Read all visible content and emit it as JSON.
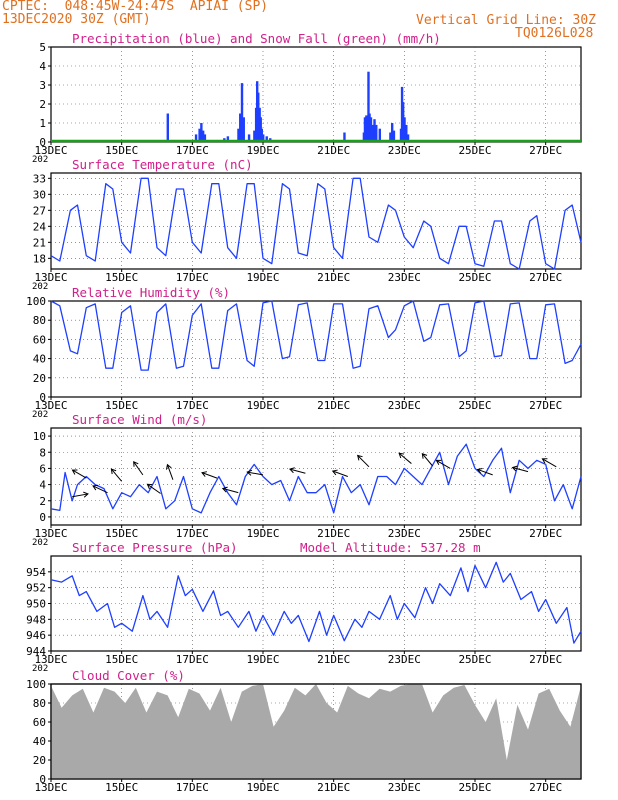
{
  "header": {
    "line1_left": "CPTEC:  048:45W-24:47S  APIAI (SP)",
    "line2_left": "13DEC2020 30Z (GMT)",
    "line1_right": "Vertical Grid Line: 30Z",
    "line2_right": "TQ0126L028"
  },
  "colors": {
    "header": "#e07020",
    "title": "#d0208a",
    "precip": "#1f3fff",
    "snow": "#18a018",
    "line": "#1f3fff",
    "cloud": "#a9a9a9",
    "arrow": "#000000"
  },
  "x_ticks": [
    "13DEC",
    "15DEC",
    "17DEC",
    "19DEC",
    "21DEC",
    "23DEC",
    "25DEC",
    "27DEC"
  ],
  "year_stub": "202",
  "chart_data": [
    {
      "id": "precip",
      "type": "bar",
      "title": "Precipitation (blue) and Snow Fall (green) (mm/h)",
      "ylim": [
        0,
        5
      ],
      "yticks": [
        "0",
        "1",
        "2",
        "3",
        "4",
        "5"
      ],
      "x_unit": "days since 13DEC00Z",
      "bars": [
        [
          0.9,
          0.1
        ],
        [
          1.1,
          0.1
        ],
        [
          3.3,
          1.5
        ],
        [
          4.1,
          0.4
        ],
        [
          4.2,
          0.7
        ],
        [
          4.25,
          1.0
        ],
        [
          4.3,
          0.6
        ],
        [
          4.35,
          0.4
        ],
        [
          4.9,
          0.2
        ],
        [
          5.0,
          0.3
        ],
        [
          5.3,
          0.7
        ],
        [
          5.35,
          1.5
        ],
        [
          5.4,
          3.1
        ],
        [
          5.45,
          1.3
        ],
        [
          5.6,
          0.4
        ],
        [
          5.75,
          0.6
        ],
        [
          5.8,
          1.8
        ],
        [
          5.83,
          3.2
        ],
        [
          5.86,
          2.6
        ],
        [
          5.9,
          1.8
        ],
        [
          5.93,
          1.3
        ],
        [
          5.96,
          0.7
        ],
        [
          6.0,
          0.4
        ],
        [
          6.1,
          0.3
        ],
        [
          6.2,
          0.2
        ],
        [
          8.3,
          0.5
        ],
        [
          8.85,
          0.5
        ],
        [
          8.88,
          1.3
        ],
        [
          8.92,
          1.4
        ],
        [
          8.95,
          1.2
        ],
        [
          8.98,
          3.7
        ],
        [
          9.01,
          1.5
        ],
        [
          9.05,
          1.3
        ],
        [
          9.1,
          0.9
        ],
        [
          9.15,
          1.2
        ],
        [
          9.2,
          0.9
        ],
        [
          9.3,
          0.7
        ],
        [
          9.6,
          0.5
        ],
        [
          9.65,
          1.0
        ],
        [
          9.7,
          0.6
        ],
        [
          9.9,
          0.7
        ],
        [
          9.93,
          2.9
        ],
        [
          9.96,
          2.1
        ],
        [
          10.0,
          1.3
        ],
        [
          10.05,
          0.9
        ],
        [
          10.1,
          0.4
        ],
        [
          10.2,
          0.1
        ]
      ],
      "snow_values": 0
    },
    {
      "id": "temperature",
      "type": "line",
      "title": "Surface Temperature (nC)",
      "ylim": [
        16,
        34
      ],
      "yticks": [
        "18",
        "21",
        "24",
        "27",
        "30",
        "33"
      ],
      "series": [
        {
          "x": [
            0,
            0.25,
            0.55,
            0.75,
            1,
            1.25,
            1.55,
            1.75,
            2,
            2.25,
            2.55,
            2.75,
            3,
            3.25,
            3.55,
            3.75,
            4,
            4.25,
            4.55,
            4.75,
            5,
            5.25,
            5.55,
            5.75,
            6,
            6.25,
            6.55,
            6.75,
            7,
            7.25,
            7.55,
            7.75,
            8,
            8.25,
            8.55,
            8.75,
            9,
            9.25,
            9.55,
            9.75,
            10,
            10.25,
            10.55,
            10.75,
            11,
            11.25,
            11.55,
            11.75,
            12,
            12.25,
            12.55,
            12.75,
            13,
            13.25,
            13.55,
            13.75,
            14,
            14.25,
            14.55,
            14.75,
            15
          ],
          "y": [
            18.5,
            17.5,
            27,
            28,
            18.5,
            17.5,
            32,
            31,
            21,
            19,
            33,
            33,
            20,
            18.5,
            31,
            31,
            21,
            19,
            32,
            32,
            20,
            18,
            32,
            32,
            18,
            17,
            32,
            31,
            19,
            18.5,
            32,
            31,
            20,
            18,
            33,
            33,
            22,
            21,
            28,
            27,
            22,
            20,
            25,
            24,
            18,
            17,
            24,
            24,
            17,
            16.5,
            25,
            25,
            17,
            16,
            25,
            26,
            17,
            16,
            27,
            28,
            21
          ]
        }
      ]
    },
    {
      "id": "humidity",
      "type": "line",
      "title": "Relative Humidity (%)",
      "ylim": [
        0,
        100
      ],
      "yticks": [
        "0",
        "20",
        "40",
        "60",
        "80",
        "100"
      ],
      "series": [
        {
          "x": [
            0,
            0.25,
            0.55,
            0.75,
            1,
            1.25,
            1.55,
            1.75,
            2,
            2.25,
            2.55,
            2.75,
            3,
            3.25,
            3.55,
            3.75,
            4,
            4.25,
            4.55,
            4.75,
            5,
            5.25,
            5.55,
            5.75,
            6,
            6.25,
            6.55,
            6.75,
            7,
            7.25,
            7.55,
            7.75,
            8,
            8.25,
            8.55,
            8.75,
            9,
            9.25,
            9.55,
            9.75,
            10,
            10.25,
            10.55,
            10.75,
            11,
            11.25,
            11.55,
            11.75,
            12,
            12.25,
            12.55,
            12.75,
            13,
            13.25,
            13.55,
            13.75,
            14,
            14.25,
            14.55,
            14.75,
            15
          ],
          "y": [
            100,
            95,
            48,
            45,
            93,
            97,
            30,
            30,
            88,
            95,
            28,
            28,
            88,
            97,
            30,
            32,
            85,
            97,
            30,
            30,
            90,
            97,
            38,
            32,
            98,
            100,
            40,
            42,
            96,
            98,
            38,
            38,
            97,
            97,
            30,
            32,
            92,
            95,
            62,
            70,
            95,
            100,
            58,
            62,
            96,
            97,
            42,
            48,
            98,
            100,
            42,
            43,
            97,
            98,
            40,
            40,
            96,
            97,
            35,
            38,
            55
          ]
        }
      ]
    },
    {
      "id": "wind",
      "type": "line",
      "title": "Surface Wind (m/s)",
      "ylim": [
        -1,
        11
      ],
      "yticks": [
        "0",
        "2",
        "4",
        "6",
        "8",
        "10"
      ],
      "series": [
        {
          "x": [
            0,
            0.25,
            0.4,
            0.6,
            0.75,
            1,
            1.25,
            1.5,
            1.75,
            2,
            2.25,
            2.5,
            2.75,
            3,
            3.25,
            3.5,
            3.75,
            4,
            4.25,
            4.5,
            4.75,
            5,
            5.25,
            5.5,
            5.75,
            6,
            6.25,
            6.5,
            6.75,
            7,
            7.25,
            7.5,
            7.75,
            8,
            8.25,
            8.5,
            8.75,
            9,
            9.25,
            9.5,
            9.75,
            10,
            10.25,
            10.5,
            10.75,
            11,
            11.25,
            11.5,
            11.75,
            12,
            12.25,
            12.5,
            12.75,
            13,
            13.25,
            13.5,
            13.75,
            14,
            14.25,
            14.5,
            14.75,
            15
          ],
          "y": [
            1,
            0.8,
            5.5,
            2,
            4,
            5,
            4,
            3.5,
            1,
            3,
            2.5,
            4,
            3,
            5,
            1,
            2,
            5,
            1,
            0.5,
            3,
            5,
            3,
            1.5,
            5,
            6.5,
            5,
            4,
            4.5,
            2,
            5,
            3,
            3,
            4,
            0.5,
            5,
            3,
            4,
            1.5,
            5,
            5,
            4,
            6,
            5,
            4,
            6,
            8,
            4,
            7.5,
            9,
            6,
            5,
            7,
            8.5,
            3,
            7,
            6,
            7,
            6.5,
            2,
            4,
            1,
            5
          ]
        }
      ],
      "arrows": [
        [
          0.6,
          2.5,
          -10
        ],
        [
          1.0,
          4.8,
          -150
        ],
        [
          1.6,
          3.0,
          -155
        ],
        [
          2.0,
          4.4,
          -130
        ],
        [
          2.6,
          5.2,
          -125
        ],
        [
          3.1,
          2.9,
          -145
        ],
        [
          3.45,
          4.6,
          -110
        ],
        [
          4.7,
          4.8,
          -160
        ],
        [
          5.3,
          3.0,
          -165
        ],
        [
          6.0,
          5.2,
          -170
        ],
        [
          7.2,
          5.4,
          -165
        ],
        [
          8.4,
          5.0,
          -160
        ],
        [
          9.0,
          6.2,
          -135
        ],
        [
          10.2,
          6.6,
          -140
        ],
        [
          10.8,
          6.3,
          -130
        ],
        [
          11.3,
          6.0,
          -150
        ],
        [
          12.5,
          5.2,
          -160
        ],
        [
          13.5,
          5.6,
          -165
        ],
        [
          14.3,
          6.2,
          -150
        ]
      ]
    },
    {
      "id": "pressure",
      "type": "line",
      "title": "Surface Pressure (hPa)",
      "subtitle": "Model Altitude: 537.28  m",
      "ylim": [
        944,
        956
      ],
      "yticks": [
        "944",
        "946",
        "948",
        "950",
        "952",
        "954"
      ],
      "series": [
        {
          "x": [
            0,
            0.3,
            0.6,
            0.8,
            1,
            1.3,
            1.6,
            1.8,
            2,
            2.3,
            2.6,
            2.8,
            3,
            3.3,
            3.6,
            3.8,
            4,
            4.3,
            4.6,
            4.8,
            5,
            5.3,
            5.6,
            5.8,
            6,
            6.3,
            6.6,
            6.8,
            7,
            7.3,
            7.6,
            7.8,
            8,
            8.3,
            8.6,
            8.8,
            9,
            9.3,
            9.6,
            9.8,
            10,
            10.3,
            10.6,
            10.8,
            11,
            11.3,
            11.6,
            11.8,
            12,
            12.3,
            12.6,
            12.8,
            13,
            13.3,
            13.6,
            13.8,
            14,
            14.3,
            14.6,
            14.8,
            15
          ],
          "y": [
            953,
            952.7,
            953.5,
            951,
            951.5,
            949,
            950,
            947,
            947.5,
            946.5,
            951,
            948,
            949,
            947,
            953.5,
            951,
            951.8,
            949,
            951.6,
            948.5,
            949,
            947,
            949,
            946.5,
            948.5,
            946,
            949,
            947.5,
            948.5,
            945.2,
            949,
            946,
            948.5,
            945.3,
            948,
            947,
            949,
            948,
            951,
            948,
            950,
            948.2,
            952,
            950,
            952.5,
            951,
            954.5,
            951.5,
            954.8,
            952,
            955.2,
            952.7,
            953.8,
            950.5,
            951.5,
            949,
            950.5,
            947.5,
            949.5,
            945,
            946.5
          ]
        }
      ]
    },
    {
      "id": "cloud",
      "type": "area",
      "title": "Cloud Cover (%)",
      "ylim": [
        0,
        100
      ],
      "yticks": [
        "0",
        "20",
        "40",
        "60",
        "80",
        "100"
      ],
      "series": [
        {
          "x": [
            0,
            0.3,
            0.6,
            0.9,
            1.2,
            1.5,
            1.8,
            2.1,
            2.4,
            2.7,
            3,
            3.3,
            3.6,
            3.9,
            4.2,
            4.5,
            4.8,
            5.1,
            5.4,
            5.7,
            6,
            6.3,
            6.6,
            6.9,
            7.2,
            7.5,
            7.8,
            8.1,
            8.4,
            8.7,
            9,
            9.3,
            9.6,
            9.9,
            10.2,
            10.5,
            10.8,
            11.1,
            11.4,
            11.7,
            12,
            12.3,
            12.6,
            12.9,
            13.2,
            13.5,
            13.8,
            14.1,
            14.4,
            14.7,
            15
          ],
          "y": [
            98,
            75,
            88,
            95,
            70,
            96,
            92,
            80,
            96,
            70,
            92,
            88,
            65,
            95,
            90,
            72,
            96,
            60,
            92,
            98,
            100,
            55,
            72,
            96,
            88,
            100,
            80,
            70,
            98,
            90,
            85,
            95,
            92,
            98,
            100,
            100,
            70,
            88,
            96,
            99,
            78,
            60,
            85,
            20,
            78,
            52,
            90,
            95,
            72,
            55,
            98
          ]
        }
      ]
    }
  ]
}
